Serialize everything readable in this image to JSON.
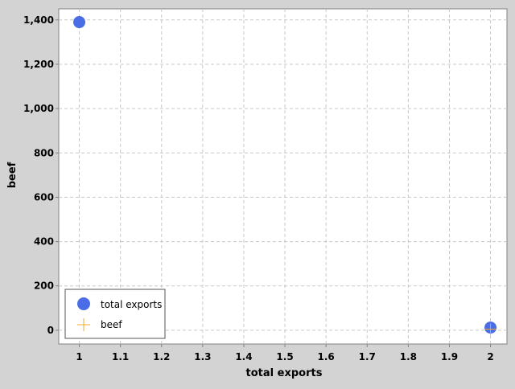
{
  "chart_data": {
    "type": "scatter",
    "xlabel": "total exports",
    "ylabel": "beef",
    "xlim": [
      0.95,
      2.04
    ],
    "ylim": [
      -62,
      1450
    ],
    "x_ticks": [
      1,
      1.1,
      1.2,
      1.3,
      1.4,
      1.5,
      1.6,
      1.7,
      1.8,
      1.9,
      2
    ],
    "x_tick_labels": [
      "1",
      "1.1",
      "1.2",
      "1.3",
      "1.4",
      "1.5",
      "1.6",
      "1.7",
      "1.8",
      "1.9",
      "2"
    ],
    "y_ticks": [
      0,
      200,
      400,
      600,
      800,
      1000,
      1200,
      1400
    ],
    "y_tick_labels": [
      "0",
      "200",
      "400",
      "600",
      "800",
      "1,000",
      "1,200",
      "1,400"
    ],
    "grid": true,
    "legend_position": "bottom-left",
    "series": [
      {
        "name": "total exports",
        "marker": "circle",
        "color": "#4a6de5",
        "points": [
          {
            "x": 1,
            "y": 1390
          },
          {
            "x": 2,
            "y": 12
          }
        ]
      },
      {
        "name": "beef",
        "marker": "plus",
        "color": "#f5a623",
        "points": [
          {
            "x": 2,
            "y": 5
          }
        ]
      }
    ]
  }
}
